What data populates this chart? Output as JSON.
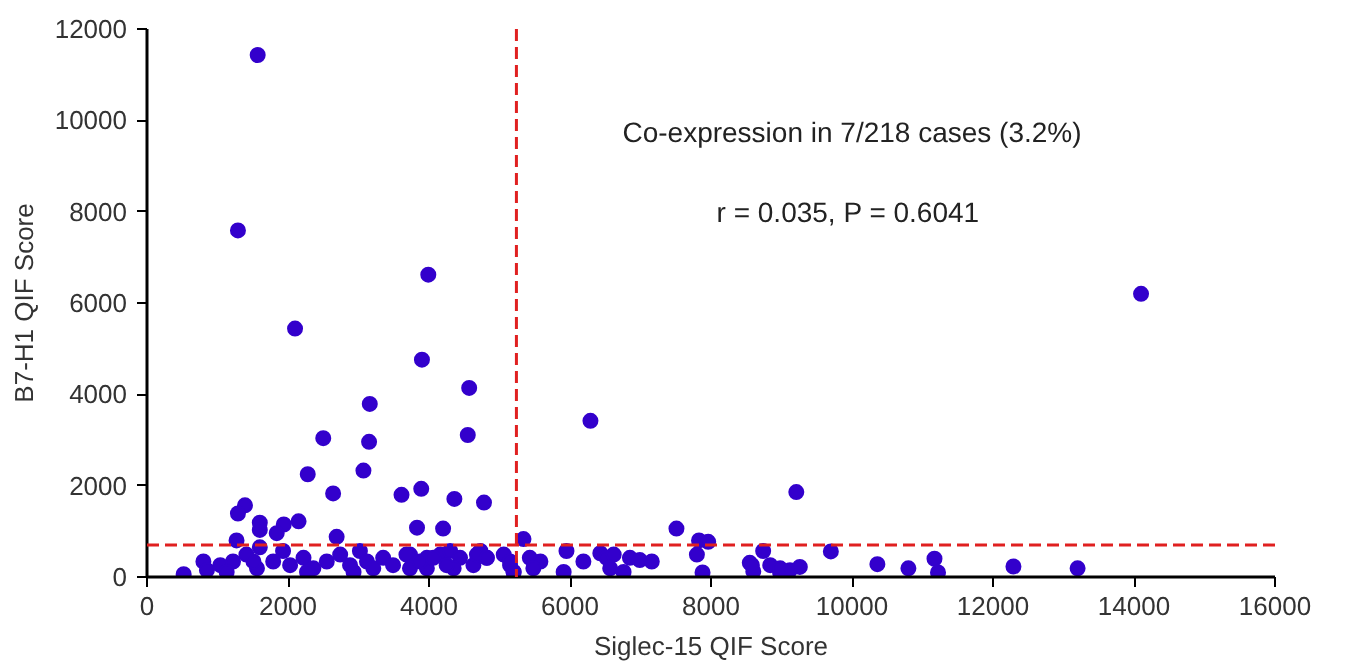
{
  "chart_data": {
    "type": "scatter",
    "xlabel": "Siglec-15 QIF Score",
    "ylabel": "B7-H1 QIF Score",
    "annotations": [
      "Co-expression in 7/218 cases (3.2%)",
      "r = 0.035,  P = 0.6041"
    ],
    "xlim": [
      0,
      16000
    ],
    "ylim": [
      0,
      12000
    ],
    "xticks": [
      0,
      2000,
      4000,
      6000,
      8000,
      10000,
      12000,
      14000,
      16000
    ],
    "yticks": [
      0,
      2000,
      4000,
      6000,
      8000,
      10000,
      12000
    ],
    "grid": false,
    "marker": "circle",
    "ref_lines": [
      {
        "axis": "x",
        "value": 5240,
        "label": null,
        "color": "#e02020",
        "line_style": "dashed"
      },
      {
        "axis": "y",
        "value": 700,
        "label": null,
        "color": "#e02020",
        "line_style": "dashed"
      }
    ],
    "series": [
      {
        "color": "#3300cc",
        "x": [
          1570,
          1290,
          3990,
          2100,
          3900,
          4570,
          3160,
          4550,
          2500,
          3150,
          2280,
          3070,
          2640,
          3610,
          3890,
          4360,
          4780,
          6290,
          7510,
          1390,
          1290,
          1600,
          1940,
          2150,
          3830,
          4200,
          9210,
          14100,
          7830,
          7960,
          7800,
          7880,
          8550,
          8600,
          8740,
          8840,
          8980,
          9120,
          9260,
          9700,
          10360,
          10800,
          11170,
          11220,
          12290,
          13200,
          5340,
          5430,
          5580,
          5480,
          5910,
          5950,
          6190,
          6430,
          6520,
          6620,
          6570,
          6850,
          6990,
          7160,
          6760,
          8580,
          8980,
          3730,
          3970,
          4160,
          4300,
          4440,
          4730,
          4820,
          5060,
          5150,
          3970,
          4350,
          4630,
          5200,
          520,
          800,
          850,
          1040,
          1220,
          1270,
          1410,
          1560,
          1600,
          1790,
          1930,
          2030,
          2220,
          2360,
          2550,
          2690,
          2740,
          2880,
          3020,
          3120,
          3210,
          3350,
          3490,
          3680,
          3730,
          3870,
          4060,
          4250,
          4680,
          4820,
          5150,
          5200,
          1600,
          1840,
          1510,
          1130,
          2270,
          2930
        ],
        "values": [
          11430,
          7590,
          6620,
          5440,
          4760,
          4140,
          3790,
          3110,
          3040,
          2960,
          2250,
          2330,
          1830,
          1800,
          1930,
          1710,
          1630,
          3420,
          1060,
          1570,
          1390,
          1190,
          1150,
          1220,
          1080,
          1060,
          1860,
          6200,
          800,
          770,
          490,
          100,
          310,
          120,
          570,
          260,
          100,
          150,
          220,
          560,
          280,
          190,
          400,
          100,
          230,
          190,
          830,
          420,
          340,
          190,
          110,
          570,
          340,
          520,
          420,
          490,
          190,
          420,
          370,
          340,
          110,
          260,
          190,
          490,
          420,
          490,
          570,
          420,
          570,
          420,
          490,
          260,
          190,
          190,
          260,
          110,
          60,
          340,
          150,
          260,
          340,
          800,
          490,
          190,
          650,
          340,
          570,
          260,
          420,
          190,
          340,
          880,
          490,
          260,
          570,
          340,
          190,
          420,
          260,
          490,
          190,
          340,
          420,
          260,
          490,
          420,
          340,
          110,
          1030,
          960,
          340,
          110,
          110,
          110
        ]
      }
    ]
  }
}
